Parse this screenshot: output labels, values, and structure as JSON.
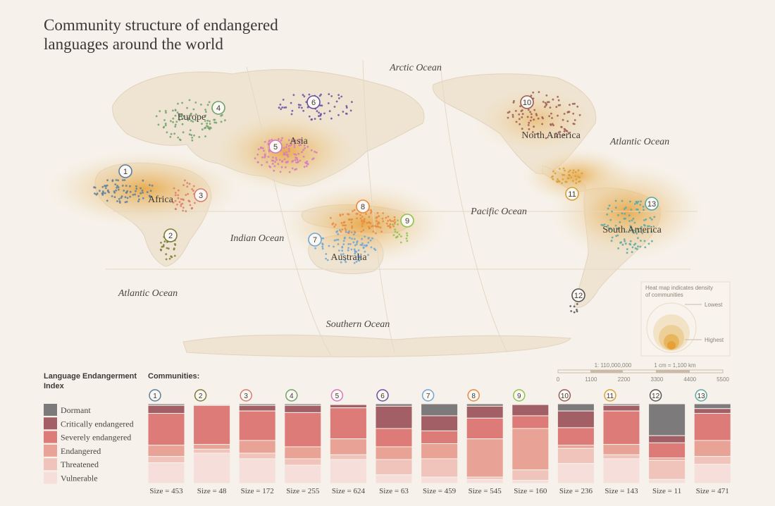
{
  "title": "Community structure of endangered\nlanguages around the world",
  "map": {
    "oceans": [
      "Arctic Ocean",
      "Atlantic Ocean",
      "Pacific Ocean",
      "Indian Ocean",
      "Atlantic Ocean",
      "Southern Ocean"
    ],
    "continents": [
      "Europe",
      "Asia",
      "Africa",
      "Australia",
      "North America",
      "South America"
    ],
    "heat_legend": {
      "title_line1": "Heat map indicates density",
      "title_line2": "of communities",
      "lowest": "Lowest",
      "highest": "Highest"
    },
    "scale": {
      "ratio": "1: 110,000,000",
      "cm": "1 cm = 1,100 km",
      "ticks": [
        "0",
        "1100",
        "2200",
        "3300",
        "4400",
        "5500"
      ]
    }
  },
  "legend": {
    "title_line1": "Language Endangerment",
    "title_line2": "Index",
    "items": [
      {
        "label": "Dormant",
        "color": "#7c7a7a"
      },
      {
        "label": "Critically endangered",
        "color": "#a35f66"
      },
      {
        "label": "Severely endangered",
        "color": "#dd7b78"
      },
      {
        "label": "Endangered",
        "color": "#e8a396"
      },
      {
        "label": "Threatened",
        "color": "#f0c4bb"
      },
      {
        "label": "Vulnerable",
        "color": "#f6dfda"
      }
    ]
  },
  "communities_title": "Communities:",
  "chart_data": {
    "type": "bar",
    "stacked": true,
    "normalized": true,
    "categories": [
      "1",
      "2",
      "3",
      "4",
      "5",
      "6",
      "7",
      "8",
      "9",
      "10",
      "11",
      "12",
      "13"
    ],
    "badge_colors": [
      "#5b7fa0",
      "#7d7a3a",
      "#d97b72",
      "#6fa26a",
      "#d47ac0",
      "#6a4fa0",
      "#6ea6d6",
      "#e8893f",
      "#8ec14e",
      "#9a5b55",
      "#d6a036",
      "#555555",
      "#58a8a6"
    ],
    "sizes": [
      "Size = 453",
      "Size = 48",
      "Size = 172",
      "Size = 255",
      "Size = 624",
      "Size = 63",
      "Size = 459",
      "Size = 545",
      "Size = 160",
      "Size = 236",
      "Size = 143",
      "Size = 11",
      "Size = 471"
    ],
    "series": [
      {
        "name": "Dormant",
        "values": [
          0.02,
          0.01,
          0.02,
          0.02,
          0.01,
          0.03,
          0.15,
          0.03,
          0.01,
          0.09,
          0.02,
          0.4,
          0.06
        ]
      },
      {
        "name": "Critically endangered",
        "values": [
          0.1,
          0.01,
          0.07,
          0.09,
          0.04,
          0.28,
          0.19,
          0.15,
          0.14,
          0.21,
          0.07,
          0.09,
          0.06
        ]
      },
      {
        "name": "Severely endangered",
        "values": [
          0.4,
          0.49,
          0.37,
          0.43,
          0.39,
          0.23,
          0.16,
          0.26,
          0.16,
          0.22,
          0.42,
          0.19,
          0.34
        ]
      },
      {
        "name": "Endangered",
        "values": [
          0.14,
          0.06,
          0.16,
          0.15,
          0.2,
          0.16,
          0.19,
          0.48,
          0.52,
          0.04,
          0.13,
          0.03,
          0.2
        ]
      },
      {
        "name": "Threatened",
        "values": [
          0.08,
          0.05,
          0.07,
          0.08,
          0.06,
          0.19,
          0.23,
          0.03,
          0.13,
          0.19,
          0.05,
          0.24,
          0.1
        ]
      },
      {
        "name": "Vulnerable",
        "values": [
          0.26,
          0.38,
          0.31,
          0.23,
          0.3,
          0.11,
          0.08,
          0.05,
          0.04,
          0.25,
          0.31,
          0.05,
          0.24
        ]
      }
    ]
  }
}
